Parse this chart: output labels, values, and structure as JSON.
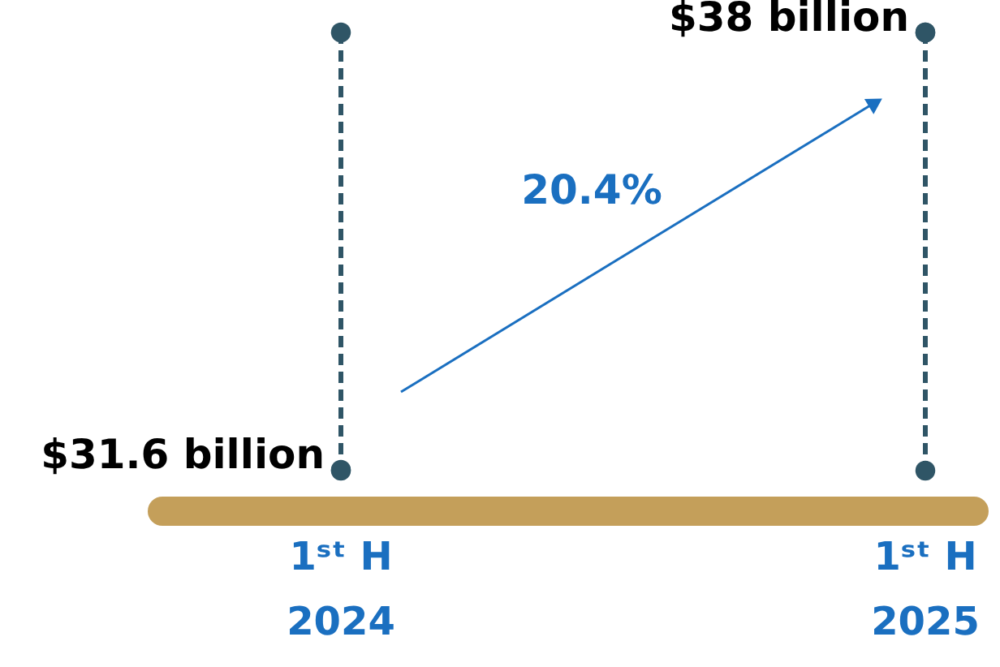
{
  "chart_data": {
    "type": "other",
    "categories": [
      "1ˢᵗ H 2024",
      "1ˢᵗ H 2025"
    ],
    "values": [
      31.6,
      38
    ],
    "value_labels": [
      "$31.6 billion",
      "$38 billion"
    ],
    "colors": [
      "#2f5566",
      "#2f5566"
    ],
    "annotations": [
      "20.4%"
    ]
  }
}
